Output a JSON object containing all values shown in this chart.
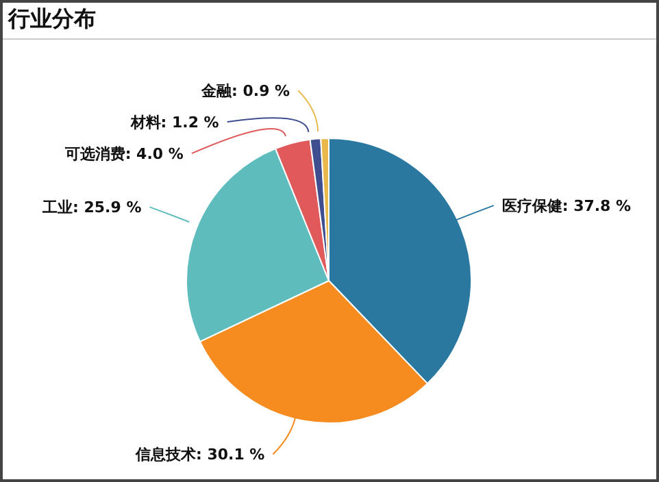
{
  "chart_data": {
    "type": "pie",
    "title": "行业分布",
    "categories": [
      "医疗保健",
      "信息技术",
      "工业",
      "可选消费",
      "材料",
      "金融"
    ],
    "values": [
      37.8,
      30.1,
      25.9,
      4.0,
      1.2,
      0.9
    ],
    "value_labels": [
      "37.8 %",
      "30.1 %",
      "25.9 %",
      "4.0 %",
      "1.2 %",
      "0.9 %"
    ],
    "colors": [
      "#2a78a0",
      "#f68b1f",
      "#5fbcbc",
      "#e05a5c",
      "#3f4e8e",
      "#e8b84c"
    ]
  }
}
